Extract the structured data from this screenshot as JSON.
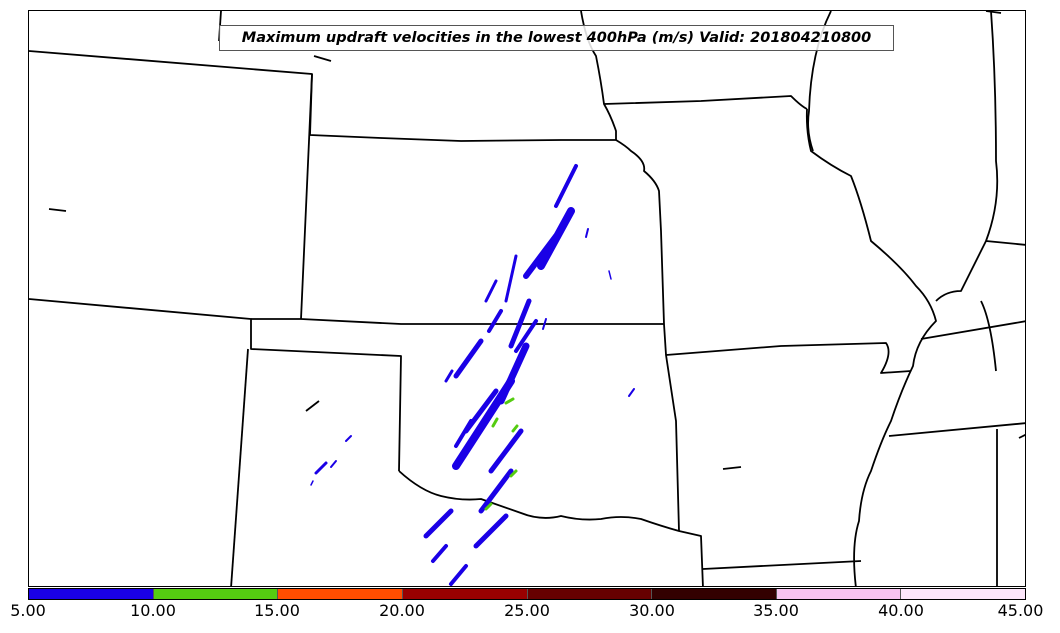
{
  "title": "Maximum updraft velocities in the lowest 400hPa (m/s) Valid: 201804210800",
  "colorbar": {
    "segments": [
      {
        "from": 5,
        "to": 10,
        "color": "#1a00e6"
      },
      {
        "from": 10,
        "to": 15,
        "color": "#55cc11"
      },
      {
        "from": 15,
        "to": 20,
        "color": "#ff4d00"
      },
      {
        "from": 20,
        "to": 25,
        "color": "#990000"
      },
      {
        "from": 25,
        "to": 30,
        "color": "#660000"
      },
      {
        "from": 30,
        "to": 35,
        "color": "#330000"
      },
      {
        "from": 35,
        "to": 40,
        "color": "#f7c4f0"
      },
      {
        "from": 40,
        "to": 45,
        "color": "#fde6fb"
      }
    ],
    "tick_labels": [
      "5.00",
      "10.00",
      "15.00",
      "20.00",
      "25.00",
      "30.00",
      "35.00",
      "40.00",
      "45.00"
    ]
  },
  "map": {
    "boundary_color": "#000000",
    "updraft_color_primary": "#1a00e6",
    "updraft_color_secondary": "#55cc11"
  }
}
